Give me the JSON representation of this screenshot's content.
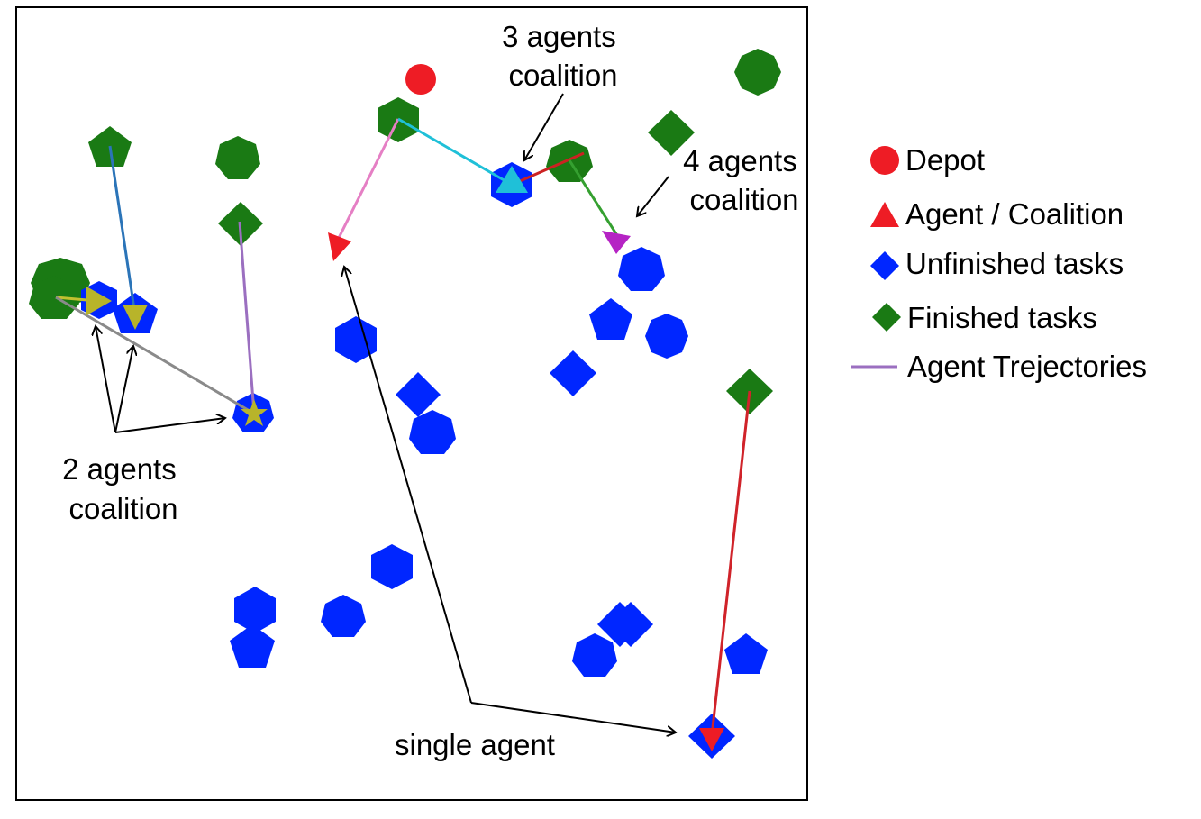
{
  "legend": {
    "depot": "Depot",
    "agent": "Agent / Coalition",
    "unfinished": "Unfinished tasks",
    "finished": "Finished tasks",
    "trajectory": "Agent Trejectories"
  },
  "annotations": {
    "three_agents": [
      "3 agents",
      "coalition"
    ],
    "four_agents": [
      "4 agents",
      "coalition"
    ],
    "two_agents": [
      "2 agents",
      "coalition"
    ],
    "single_agent": "single agent"
  },
  "colors": {
    "depot": "#ee1c25",
    "unfinished": "#0026ff",
    "finished": "#1a7a14",
    "trajectory_legend": "#9b6fc0"
  },
  "icons": {
    "depot": "red-circle",
    "agent": "red-triangle",
    "unfinished": "blue-diamond",
    "finished": "green-diamond",
    "trajectory": "purple-line"
  }
}
